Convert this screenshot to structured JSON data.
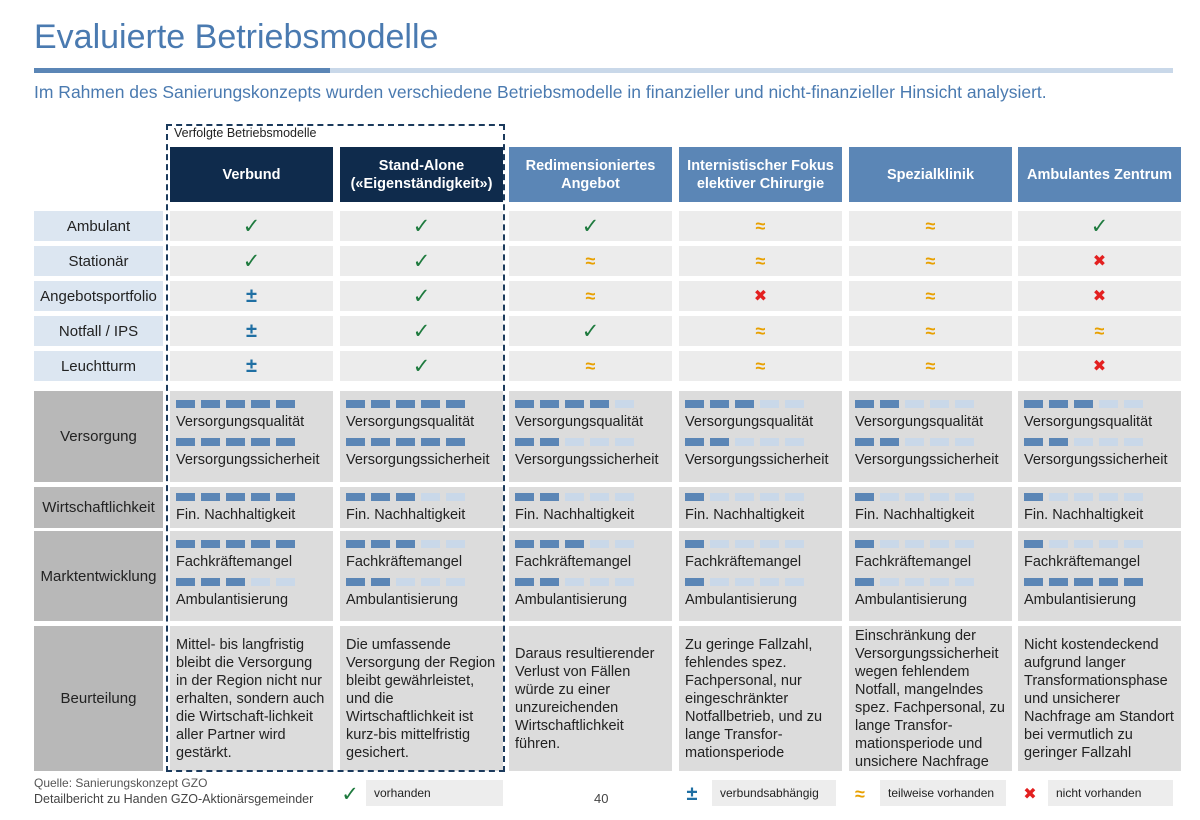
{
  "title": "Evaluierte Betriebsmodelle",
  "subtitle": "Im Rahmen des Sanierungskonzepts wurden verschiedene Betriebsmodelle in finanzieller und nicht-finanzieller Hinsicht analysiert.",
  "group_label": "Verfolgte Betriebsmodelle",
  "columns": [
    {
      "label": "Verbund",
      "style": "navy"
    },
    {
      "label": "Stand-Alone\n(«Eigenständigkeit»)",
      "style": "navy"
    },
    {
      "label": "Redimensioniertes Angebot",
      "style": "blue"
    },
    {
      "label": "Internistischer Fokus elektiver Chirurgie",
      "style": "blue"
    },
    {
      "label": "Spezialklinik",
      "style": "blue"
    },
    {
      "label": "Ambulantes Zentrum",
      "style": "blue"
    }
  ],
  "symbol_rows": [
    {
      "label": "Ambulant",
      "values": [
        "check",
        "check",
        "check",
        "approx",
        "approx",
        "check"
      ]
    },
    {
      "label": "Stationär",
      "values": [
        "check",
        "check",
        "approx",
        "approx",
        "approx",
        "x"
      ]
    },
    {
      "label": "Angebotsportfolio",
      "values": [
        "pm",
        "check",
        "approx",
        "x",
        "approx",
        "x"
      ]
    },
    {
      "label": "Notfall / IPS",
      "values": [
        "pm",
        "check",
        "check",
        "approx",
        "approx",
        "approx"
      ]
    },
    {
      "label": "Leuchtturm",
      "values": [
        "pm",
        "check",
        "approx",
        "approx",
        "approx",
        "x"
      ]
    }
  ],
  "symbols": {
    "check": "✓",
    "pm": "±",
    "approx": "≈",
    "x": "✖"
  },
  "criteria_rows": [
    {
      "label": "Versorgung",
      "items": [
        "Versorgungsqualität",
        "Versorgungssicherheit"
      ],
      "ratings": [
        [
          5,
          5
        ],
        [
          5,
          5
        ],
        [
          4,
          2
        ],
        [
          3,
          2
        ],
        [
          2,
          2
        ],
        [
          3,
          2
        ]
      ]
    },
    {
      "label": "Wirtschaftlichkeit",
      "items": [
        "Fin. Nachhaltigkeit"
      ],
      "ratings": [
        [
          5
        ],
        [
          3
        ],
        [
          2
        ],
        [
          1
        ],
        [
          1
        ],
        [
          1
        ]
      ]
    },
    {
      "label": "Marktentwicklung",
      "items": [
        "Fachkräftemangel",
        "Ambulantisierung"
      ],
      "ratings": [
        [
          5,
          3
        ],
        [
          3,
          2
        ],
        [
          3,
          2
        ],
        [
          1,
          1
        ],
        [
          1,
          1
        ],
        [
          1,
          5
        ]
      ]
    }
  ],
  "evaluation": {
    "label": "Beurteilung",
    "texts": [
      "Mittel- bis langfristig bleibt die Versorgung in der Region nicht nur erhalten, sondern auch die Wirtschaft-lichkeit aller Partner wird gestärkt.",
      "Die umfassende Versorgung der Region bleibt gewährleistet, und die Wirtschaftlichkeit ist kurz-bis mittelfristig gesichert.",
      "Daraus resultierender Verlust von Fällen würde zu einer unzureichenden Wirtschaftlichkeit führen.",
      "Zu geringe Fallzahl, fehlendes spez. Fachpersonal, nur eingeschränkter Notfallbetrieb, und zu lange Transfor-mationsperiode",
      "Einschränkung der Versorgungssicherheit wegen fehlendem Notfall, mangelndes spez. Fachpersonal, zu lange Transfor-mationsperiode und unsichere Nachfrage",
      "Nicht kostendeckend aufgrund langer Transformationsphase und unsicherer Nachfrage am Standort bei vermutlich zu geringer Fallzahl"
    ]
  },
  "footer": {
    "source": "Quelle: Sanierungskonzept GZO",
    "detail": "Detailbericht zu Handen GZO-Aktionärsgemeinder",
    "page": "40"
  },
  "legend": [
    {
      "symbol": "check",
      "label": "vorhanden"
    },
    {
      "symbol": "pm",
      "label": "verbundsabhängig"
    },
    {
      "symbol": "approx",
      "label": "teilweise vorhanden"
    },
    {
      "symbol": "x",
      "label": "nicht vorhanden"
    }
  ],
  "colors": {
    "navy": "#0f2b4c",
    "blue": "#5b86b6",
    "check": "#1e7a3e",
    "approx": "#e8a000",
    "x": "#e32020",
    "pm": "#1f6fa3"
  }
}
